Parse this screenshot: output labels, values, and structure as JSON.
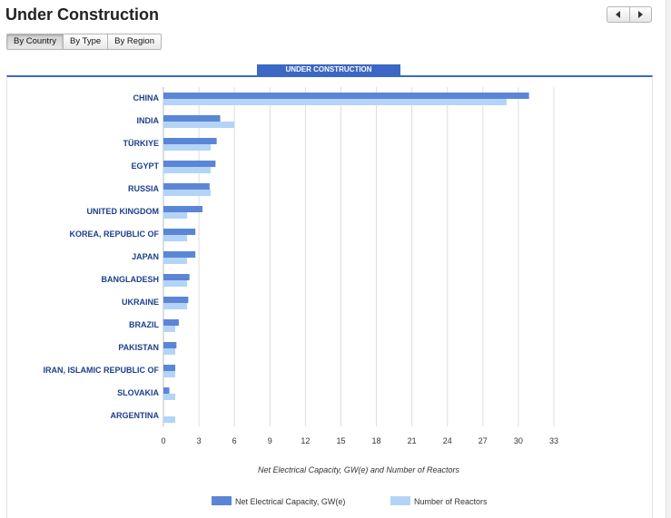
{
  "page": {
    "title": "Under Construction"
  },
  "tabs": [
    {
      "label": "By Country",
      "active": true
    },
    {
      "label": "By Type",
      "active": false
    },
    {
      "label": "By Region",
      "active": false
    }
  ],
  "panel": {
    "tab_label": "UNDER CONSTRUCTION"
  },
  "colors": {
    "capacity": "#5b86d6",
    "reactors": "#b3d4f7",
    "accent": "#3b68c4"
  },
  "chart_data": {
    "type": "bar",
    "orientation": "horizontal",
    "categories": [
      "CHINA",
      "INDIA",
      "TÜRKIYE",
      "EGYPT",
      "RUSSIA",
      "UNITED KINGDOM",
      "KOREA, REPUBLIC OF",
      "JAPAN",
      "BANGLADESH",
      "UKRAINE",
      "BRAZIL",
      "PAKISTAN",
      "IRAN, ISLAMIC REPUBLIC OF",
      "SLOVAKIA",
      "ARGENTINA"
    ],
    "series": [
      {
        "name": "Net Electrical Capacity, GW(e)",
        "values": [
          30.9,
          4.8,
          4.5,
          4.4,
          3.9,
          3.3,
          2.7,
          2.7,
          2.2,
          2.1,
          1.3,
          1.1,
          1.0,
          0.5,
          0.0
        ]
      },
      {
        "name": "Number of Reactors",
        "values": [
          29,
          6,
          4,
          4,
          4,
          2,
          2,
          2,
          2,
          2,
          1,
          1,
          1,
          1,
          1
        ]
      }
    ],
    "xlabel": "Net Electrical Capacity, GW(e) and Number of Reactors",
    "xlim": [
      0,
      33
    ],
    "xticks": [
      0,
      3,
      6,
      9,
      12,
      15,
      18,
      21,
      24,
      27,
      30,
      33
    ],
    "grid": true,
    "legend_position": "bottom"
  }
}
